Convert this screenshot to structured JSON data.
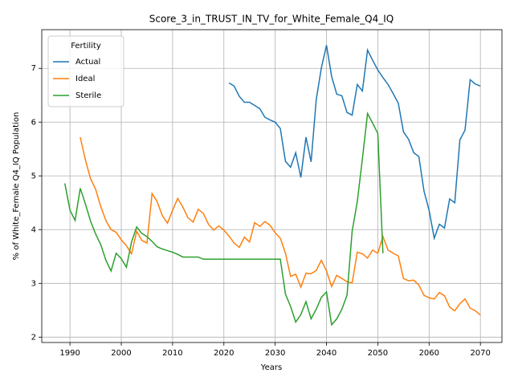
{
  "chart_data": {
    "type": "line",
    "title": "Score_3_in_TRUST_IN_TV_for_White_Female_Q4_IQ",
    "xlabel": "Years",
    "ylabel": "% of White_Female Q4_IQ Population",
    "legend_title": "Fertility",
    "legend_loc": "upper left",
    "grid": true,
    "xlim": [
      1984.5,
      2074.2
    ],
    "ylim": [
      1.9,
      7.72
    ],
    "xticks": [
      1990,
      2000,
      2010,
      2020,
      2030,
      2040,
      2050,
      2060,
      2070
    ],
    "yticks": [
      2,
      3,
      4,
      5,
      6,
      7
    ],
    "x": [
      1989,
      1990,
      1991,
      1992,
      1993,
      1994,
      1995,
      1996,
      1997,
      1998,
      1999,
      2000,
      2001,
      2002,
      2003,
      2004,
      2005,
      2006,
      2007,
      2008,
      2009,
      2010,
      2011,
      2012,
      2013,
      2014,
      2015,
      2016,
      2017,
      2018,
      2019,
      2020,
      2021,
      2022,
      2023,
      2024,
      2025,
      2026,
      2027,
      2028,
      2029,
      2030,
      2031,
      2032,
      2033,
      2034,
      2035,
      2036,
      2037,
      2038,
      2039,
      2040,
      2041,
      2042,
      2043,
      2044,
      2045,
      2046,
      2047,
      2048,
      2049,
      2050,
      2051,
      2052,
      2053,
      2054,
      2055,
      2056,
      2057,
      2058,
      2059,
      2060,
      2061,
      2062,
      2063,
      2064,
      2065,
      2066,
      2067,
      2068,
      2069,
      2070
    ],
    "series": [
      {
        "name": "Actual",
        "color": "#1f77b4",
        "values": [
          null,
          null,
          null,
          null,
          null,
          null,
          null,
          null,
          null,
          null,
          null,
          null,
          null,
          null,
          null,
          null,
          null,
          null,
          null,
          null,
          null,
          null,
          null,
          null,
          null,
          null,
          null,
          null,
          null,
          null,
          null,
          null,
          6.73,
          6.67,
          6.48,
          6.37,
          6.37,
          6.31,
          6.25,
          6.09,
          6.04,
          6.0,
          5.88,
          5.27,
          5.16,
          5.43,
          4.97,
          5.72,
          5.26,
          6.42,
          7.01,
          7.43,
          6.85,
          6.52,
          6.49,
          6.18,
          6.13,
          6.7,
          6.58,
          7.34,
          7.15,
          6.97,
          6.83,
          6.7,
          6.53,
          6.35,
          5.82,
          5.68,
          5.43,
          5.36,
          4.72,
          4.36,
          3.84,
          4.1,
          4.03,
          4.57,
          4.5,
          5.67,
          5.85,
          6.79,
          6.71,
          6.67
        ]
      },
      {
        "name": "Ideal",
        "color": "#ff7f0e",
        "values": [
          null,
          null,
          null,
          5.72,
          5.3,
          4.95,
          4.75,
          4.43,
          4.17,
          4.0,
          3.95,
          3.81,
          3.7,
          3.55,
          3.97,
          3.8,
          3.75,
          4.67,
          4.52,
          4.26,
          4.12,
          4.36,
          4.58,
          4.42,
          4.22,
          4.14,
          4.38,
          4.3,
          4.1,
          3.99,
          4.07,
          3.99,
          3.88,
          3.75,
          3.67,
          3.86,
          3.77,
          4.13,
          4.06,
          4.15,
          4.08,
          3.94,
          3.84,
          3.56,
          3.13,
          3.17,
          2.93,
          3.19,
          3.18,
          3.24,
          3.43,
          3.23,
          2.94,
          3.15,
          3.09,
          3.03,
          3.01,
          3.58,
          3.55,
          3.47,
          3.62,
          3.56,
          3.87,
          3.62,
          3.56,
          3.51,
          3.09,
          3.05,
          3.06,
          2.97,
          2.78,
          2.73,
          2.71,
          2.83,
          2.77,
          2.56,
          2.49,
          2.62,
          2.71,
          2.54,
          2.49,
          2.41
        ]
      },
      {
        "name": "Sterile",
        "color": "#2ca02c",
        "values": [
          4.86,
          4.36,
          4.17,
          4.77,
          4.48,
          4.16,
          3.92,
          3.72,
          3.43,
          3.23,
          3.56,
          3.46,
          3.3,
          3.77,
          4.05,
          3.93,
          3.87,
          3.78,
          3.68,
          3.64,
          3.61,
          3.58,
          3.54,
          3.49,
          3.49,
          3.49,
          3.49,
          3.45,
          3.45,
          3.45,
          3.45,
          3.45,
          3.45,
          3.45,
          3.45,
          3.45,
          3.45,
          3.45,
          3.45,
          3.45,
          3.45,
          3.45,
          3.45,
          2.8,
          2.57,
          2.28,
          2.42,
          2.66,
          2.34,
          2.52,
          2.74,
          2.84,
          2.23,
          2.34,
          2.52,
          2.78,
          3.97,
          4.52,
          5.32,
          6.16,
          5.98,
          5.79,
          3.56,
          null,
          null,
          null,
          null,
          null,
          null,
          null,
          null,
          null,
          null,
          null,
          null,
          null,
          null,
          null,
          null,
          null,
          null,
          null
        ]
      }
    ]
  }
}
